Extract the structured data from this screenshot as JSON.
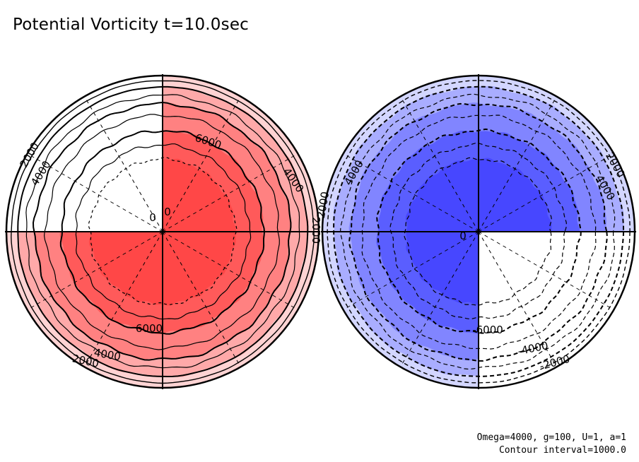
{
  "title": "Potential Vorticity t=10.0sec",
  "notes": {
    "params": "Omega=4000, g=100, U=1, a=1",
    "interval": "Contour interval=1000.0"
  },
  "colors": {
    "positive_levels": [
      "#ffd3d3",
      "#ffa9a9",
      "#ff8181",
      "#ff5a5a",
      "#ff4747"
    ],
    "negative_levels": [
      "#d3d6ff",
      "#a9adff",
      "#8185ff",
      "#5a5eff",
      "#4747ff"
    ],
    "outline": "#000000"
  },
  "chart_data": [
    {
      "type": "contour",
      "projection": "polar",
      "field": "positive",
      "contour_levels": [
        2000,
        3000,
        4000,
        5000,
        6000,
        7000
      ],
      "shaded_quadrants": [
        "upper-right",
        "lower-left",
        "lower-right"
      ],
      "labels": [
        {
          "text": "2000",
          "position": "upper-left"
        },
        {
          "text": "4000",
          "position": "upper-left"
        },
        {
          "text": "6000",
          "position": "upper-right"
        },
        {
          "text": "4000",
          "position": "upper-right"
        },
        {
          "text": "2000",
          "position": "right"
        },
        {
          "text": "6000",
          "position": "bottom"
        },
        {
          "text": "4000",
          "position": "lower-left"
        },
        {
          "text": "2000",
          "position": "lower-left"
        },
        {
          "text": "0",
          "position": "center"
        },
        {
          "text": "0",
          "position": "center"
        }
      ]
    },
    {
      "type": "contour",
      "projection": "polar",
      "field": "negative",
      "contour_levels": [
        -2000,
        -3000,
        -4000,
        -5000,
        -6000,
        -7000
      ],
      "shaded_quadrants": [
        "upper-left",
        "upper-right",
        "lower-left"
      ],
      "labels": [
        {
          "text": "4000",
          "position": "upper-left"
        },
        {
          "text": "2000",
          "position": "left"
        },
        {
          "text": "2000",
          "position": "upper-right"
        },
        {
          "text": "4000",
          "position": "upper-right"
        },
        {
          "text": "-6000",
          "position": "bottom"
        },
        {
          "text": "-4000",
          "position": "lower-right"
        },
        {
          "text": "-2000",
          "position": "lower-right"
        },
        {
          "text": "0",
          "position": "center"
        }
      ]
    }
  ]
}
